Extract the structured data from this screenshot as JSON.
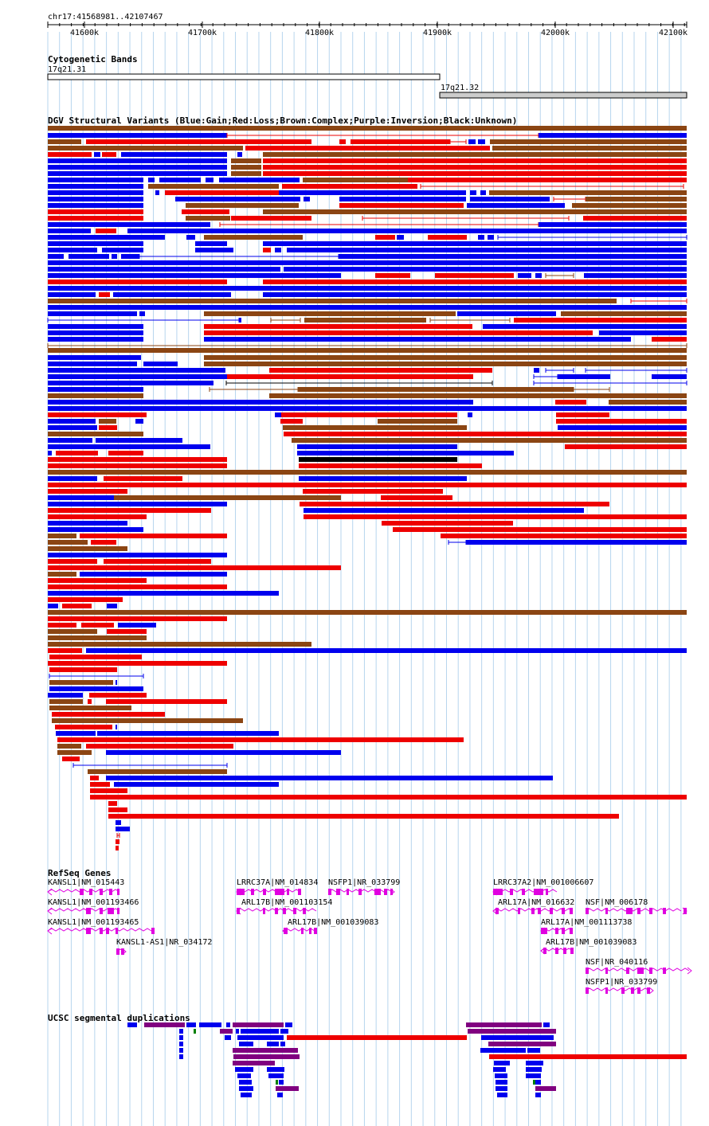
{
  "ruler": {
    "region_label": "chr17:41568981..42107467",
    "ticks": [
      "41600k",
      "41700k",
      "41800k",
      "41900k",
      "42000k",
      "42100k"
    ]
  },
  "cytoband_track": {
    "title": "Cytogenetic Bands",
    "bands": [
      {
        "name": "17q21.31",
        "shade": "#ffffff"
      },
      {
        "name": "17q21.32",
        "shade": "#cccccc"
      }
    ]
  },
  "dgv_track": {
    "title": "DGV Structural Variants (Blue:Gain;Red:Loss;Brown:Complex;Purple:Inversion;Black:Unknown)",
    "legend_colors": {
      "gain": "#0000ee",
      "loss": "#ee0000",
      "complex": "#8b4513",
      "inversion": "#800080",
      "unknown": "#000000"
    }
  },
  "refseq_track": {
    "title": "RefSeq Genes",
    "gene_color": "#e000e0",
    "genes": [
      "KANSL1|NM_015443",
      "KANSL1|NM_001193466",
      "KANSL1|NM_001193465",
      "KANSL1-AS1|NR_034172",
      "LRRC37A|NM_014834",
      "ARL17B|NM_001103154",
      "ARL17B|NM_001039083",
      "NSFP1|NR_033799",
      "LRRC37A2|NM_001006607",
      "ARL17A|NM_016632",
      "ARL17A|NM_001113738",
      "ARL17B|NM_001039083",
      "NSF|NM_006178",
      "NSF|NR_040116",
      "NSFP1|NR_033799"
    ]
  },
  "segdup_track": {
    "title": "UCSC segmental duplications",
    "colors": {
      "blue": "#0000ee",
      "red": "#ee0000",
      "purple": "#800080",
      "green": "#008000"
    }
  }
}
